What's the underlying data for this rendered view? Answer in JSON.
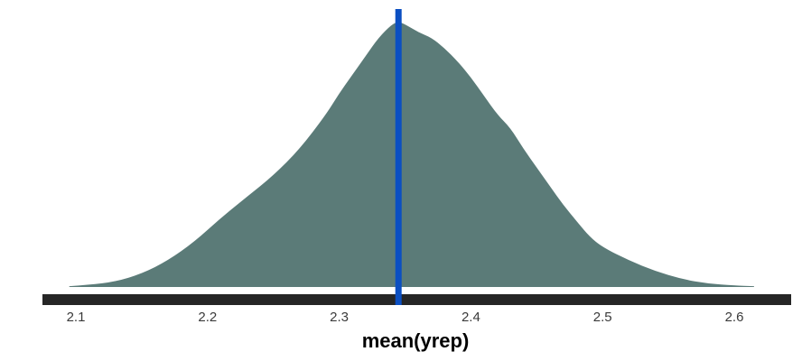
{
  "chart_data": {
    "type": "area",
    "title": "",
    "xlabel": "mean(yrep)",
    "ylabel": "",
    "xlim": [
      2.08,
      2.62
    ],
    "x_ticks": [
      2.1,
      2.2,
      2.3,
      2.4,
      2.5,
      2.6
    ],
    "x_tick_labels": [
      "2.1",
      "2.2",
      "2.3",
      "2.4",
      "2.5",
      "2.6"
    ],
    "grid": false,
    "series": [
      {
        "type": "density",
        "fill_color": "#5b7b78",
        "x": [
          2.095,
          2.11,
          2.13,
          2.15,
          2.17,
          2.19,
          2.21,
          2.23,
          2.25,
          2.27,
          2.29,
          2.3,
          2.31,
          2.32,
          2.33,
          2.34,
          2.345,
          2.35,
          2.36,
          2.37,
          2.38,
          2.39,
          2.4,
          2.41,
          2.42,
          2.43,
          2.44,
          2.45,
          2.46,
          2.47,
          2.48,
          2.49,
          2.5,
          2.52,
          2.54,
          2.56,
          2.58,
          2.6,
          2.615
        ],
        "density": [
          0.003,
          0.008,
          0.02,
          0.05,
          0.1,
          0.17,
          0.26,
          0.34,
          0.42,
          0.52,
          0.65,
          0.73,
          0.8,
          0.87,
          0.94,
          0.99,
          1.0,
          0.99,
          0.96,
          0.94,
          0.9,
          0.85,
          0.79,
          0.72,
          0.65,
          0.6,
          0.52,
          0.45,
          0.38,
          0.31,
          0.25,
          0.19,
          0.15,
          0.1,
          0.06,
          0.03,
          0.013,
          0.006,
          0.003
        ]
      }
    ],
    "reference_line": {
      "x": 2.345,
      "color": "#0b4fc2"
    },
    "axis_line_color": "#262626",
    "tick_label_color": "#3a3a3a"
  }
}
